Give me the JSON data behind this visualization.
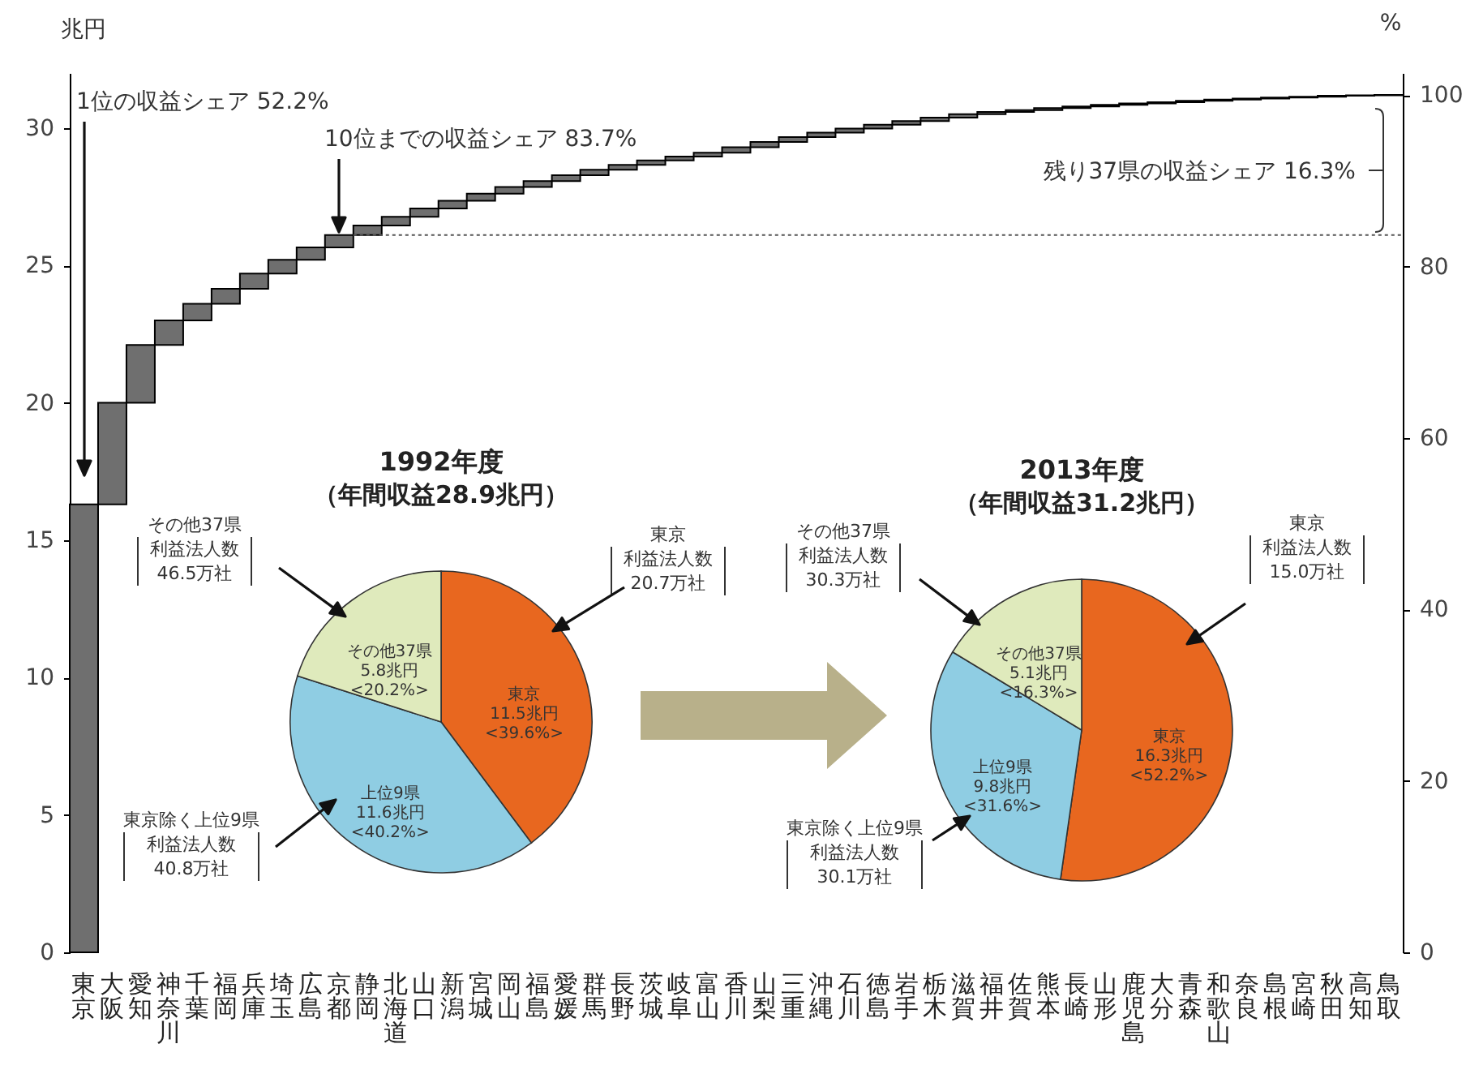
{
  "chart_data": [
    {
      "type": "bar",
      "categories": [
        "東京",
        "大阪",
        "愛知",
        "神奈川",
        "千葉",
        "福岡",
        "兵庫",
        "埼玉",
        "広島",
        "京都",
        "静岡",
        "北海道",
        "山口",
        "新潟",
        "宮城",
        "岡山",
        "福島",
        "愛媛",
        "群馬",
        "長野",
        "茨城",
        "岐阜",
        "富山",
        "香川",
        "山梨",
        "三重",
        "沖縄",
        "石川",
        "徳島",
        "岩手",
        "栃木",
        "滋賀",
        "福井",
        "佐賀",
        "熊本",
        "長崎",
        "山形",
        "鹿児島",
        "大分",
        "青森",
        "和歌山",
        "奈良",
        "島根",
        "宮崎",
        "秋田",
        "高知",
        "鳥取"
      ],
      "values": [
        16.3,
        3.7,
        2.1,
        0.9,
        0.6,
        0.55,
        0.55,
        0.5,
        0.45,
        0.45,
        0.35,
        0.32,
        0.3,
        0.28,
        0.26,
        0.24,
        0.22,
        0.21,
        0.2,
        0.18,
        0.16,
        0.14,
        0.14,
        0.2,
        0.19,
        0.18,
        0.16,
        0.15,
        0.14,
        0.13,
        0.13,
        0.12,
        0.08,
        0.07,
        0.07,
        0.06,
        0.06,
        0.05,
        0.05,
        0.05,
        0.04,
        0.04,
        0.04,
        0.03,
        0.03,
        0.02,
        0.01
      ],
      "base": [
        0,
        16.3,
        20.0,
        22.1,
        23.0,
        23.6,
        24.15,
        24.7,
        25.2,
        25.65,
        26.1,
        26.45,
        26.77,
        27.07,
        27.35,
        27.61,
        27.85,
        28.07,
        28.28,
        28.48,
        28.66,
        28.82,
        28.96,
        29.1,
        29.3,
        29.49,
        29.67,
        29.83,
        29.98,
        30.12,
        30.25,
        30.38,
        30.5,
        30.58,
        30.65,
        30.72,
        30.78,
        30.84,
        30.89,
        30.94,
        30.99,
        31.03,
        31.07,
        31.11,
        31.14,
        31.17,
        31.19
      ],
      "color": "#6f6f6f",
      "ylabel": "兆円",
      "y2label": "%",
      "ylim": [
        0,
        32
      ],
      "yticks": [
        0,
        5,
        10,
        15,
        20,
        25,
        30
      ],
      "y2lim": [
        0,
        102.6
      ],
      "y2ticks": [
        0,
        20,
        40,
        60,
        80,
        100
      ],
      "ref_lines": [
        {
          "axis": "y",
          "value": 26.1,
          "line_style": "dotted",
          "color": "#555555"
        }
      ],
      "annotations": [
        "1位の収益シェア 52.2%",
        "10位までの収益シェア 83.7%",
        "残り37県の収益シェア 16.3%"
      ]
    },
    {
      "type": "pie",
      "title": "1992年度",
      "subtitle": "（年間収益28.9兆円）",
      "categories": [
        "東京",
        "上位9県",
        "その他37県"
      ],
      "values": [
        11.5,
        11.6,
        5.8
      ],
      "colors": [
        "#e8671f",
        "#8fcde3",
        "#dfeabc"
      ],
      "value_labels": [
        "11.5兆円\n<39.6%>",
        "11.6兆円\n<40.2%>",
        "5.8兆円\n<20.2%>"
      ],
      "annotations": [
        "その他37県",
        "利益法人数",
        "46.5万社",
        "東京",
        "利益法人数",
        "20.7万社",
        "東京除く上位9県",
        "利益法人数",
        "40.8万社"
      ]
    },
    {
      "type": "pie",
      "title": "2013年度",
      "subtitle": "（年間収益31.2兆円）",
      "categories": [
        "東京",
        "上位9県",
        "その他37県"
      ],
      "values": [
        16.3,
        9.8,
        5.1
      ],
      "colors": [
        "#e8671f",
        "#8fcde3",
        "#dfeabc"
      ],
      "value_labels": [
        "16.3兆円\n<52.2%>",
        "9.8兆円\n<31.6%>",
        "5.1兆円\n<16.3%>"
      ],
      "annotations": [
        "その他37県",
        "利益法人数",
        "30.3万社",
        "東京",
        "利益法人数",
        "15.0万社",
        "東京除く上位9県",
        "利益法人数",
        "30.1万社"
      ]
    }
  ]
}
